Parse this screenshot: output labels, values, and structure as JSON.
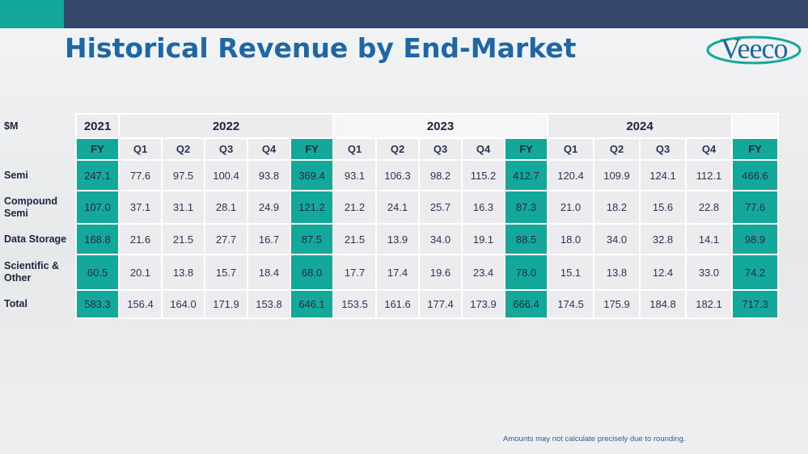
{
  "title": "Historical Revenue by End-Market",
  "logo": {
    "text": "Veeco"
  },
  "colors": {
    "accent": "#14a89a",
    "navy": "#34466a",
    "title_blue": "#1f67a4"
  },
  "table": {
    "unit_label": "$M",
    "years": [
      "2021",
      "2022",
      "2023",
      "2024"
    ],
    "headers": [
      "FY",
      "Q1",
      "Q2",
      "Q3",
      "Q4",
      "FY",
      "Q1",
      "Q2",
      "Q3",
      "Q4",
      "FY",
      "Q1",
      "Q2",
      "Q3",
      "Q4",
      "FY"
    ],
    "rows": [
      {
        "label": "Semi",
        "values": [
          "247.1",
          "77.6",
          "97.5",
          "100.4",
          "93.8",
          "369.4",
          "93.1",
          "106.3",
          "98.2",
          "115.2",
          "412.7",
          "120.4",
          "109.9",
          "124.1",
          "112.1",
          "466.6"
        ]
      },
      {
        "label": "Compound Semi",
        "values": [
          "107.0",
          "37.1",
          "31.1",
          "28.1",
          "24.9",
          "121.2",
          "21.2",
          "24.1",
          "25.7",
          "16.3",
          "87.3",
          "21.0",
          "18.2",
          "15.6",
          "22.8",
          "77.6"
        ]
      },
      {
        "label": "Data Storage",
        "values": [
          "168.8",
          "21.6",
          "21.5",
          "27.7",
          "16.7",
          "87.5",
          "21.5",
          "13.9",
          "34.0",
          "19.1",
          "88.5",
          "18.0",
          "34.0",
          "32.8",
          "14.1",
          "98.9"
        ]
      },
      {
        "label": "Scientific & Other",
        "values": [
          "60.5",
          "20.1",
          "13.8",
          "15.7",
          "18.4",
          "68.0",
          "17.7",
          "17.4",
          "19.6",
          "23.4",
          "78.0",
          "15.1",
          "13.8",
          "12.4",
          "33.0",
          "74.2"
        ]
      },
      {
        "label": "Total",
        "values": [
          "583.3",
          "156.4",
          "164.0",
          "171.9",
          "153.8",
          "646.1",
          "153.5",
          "161.6",
          "177.4",
          "173.9",
          "666.4",
          "174.5",
          "175.9",
          "184.8",
          "182.1",
          "717.3"
        ]
      }
    ]
  },
  "footnote": "Amounts may not calculate precisely due to rounding."
}
